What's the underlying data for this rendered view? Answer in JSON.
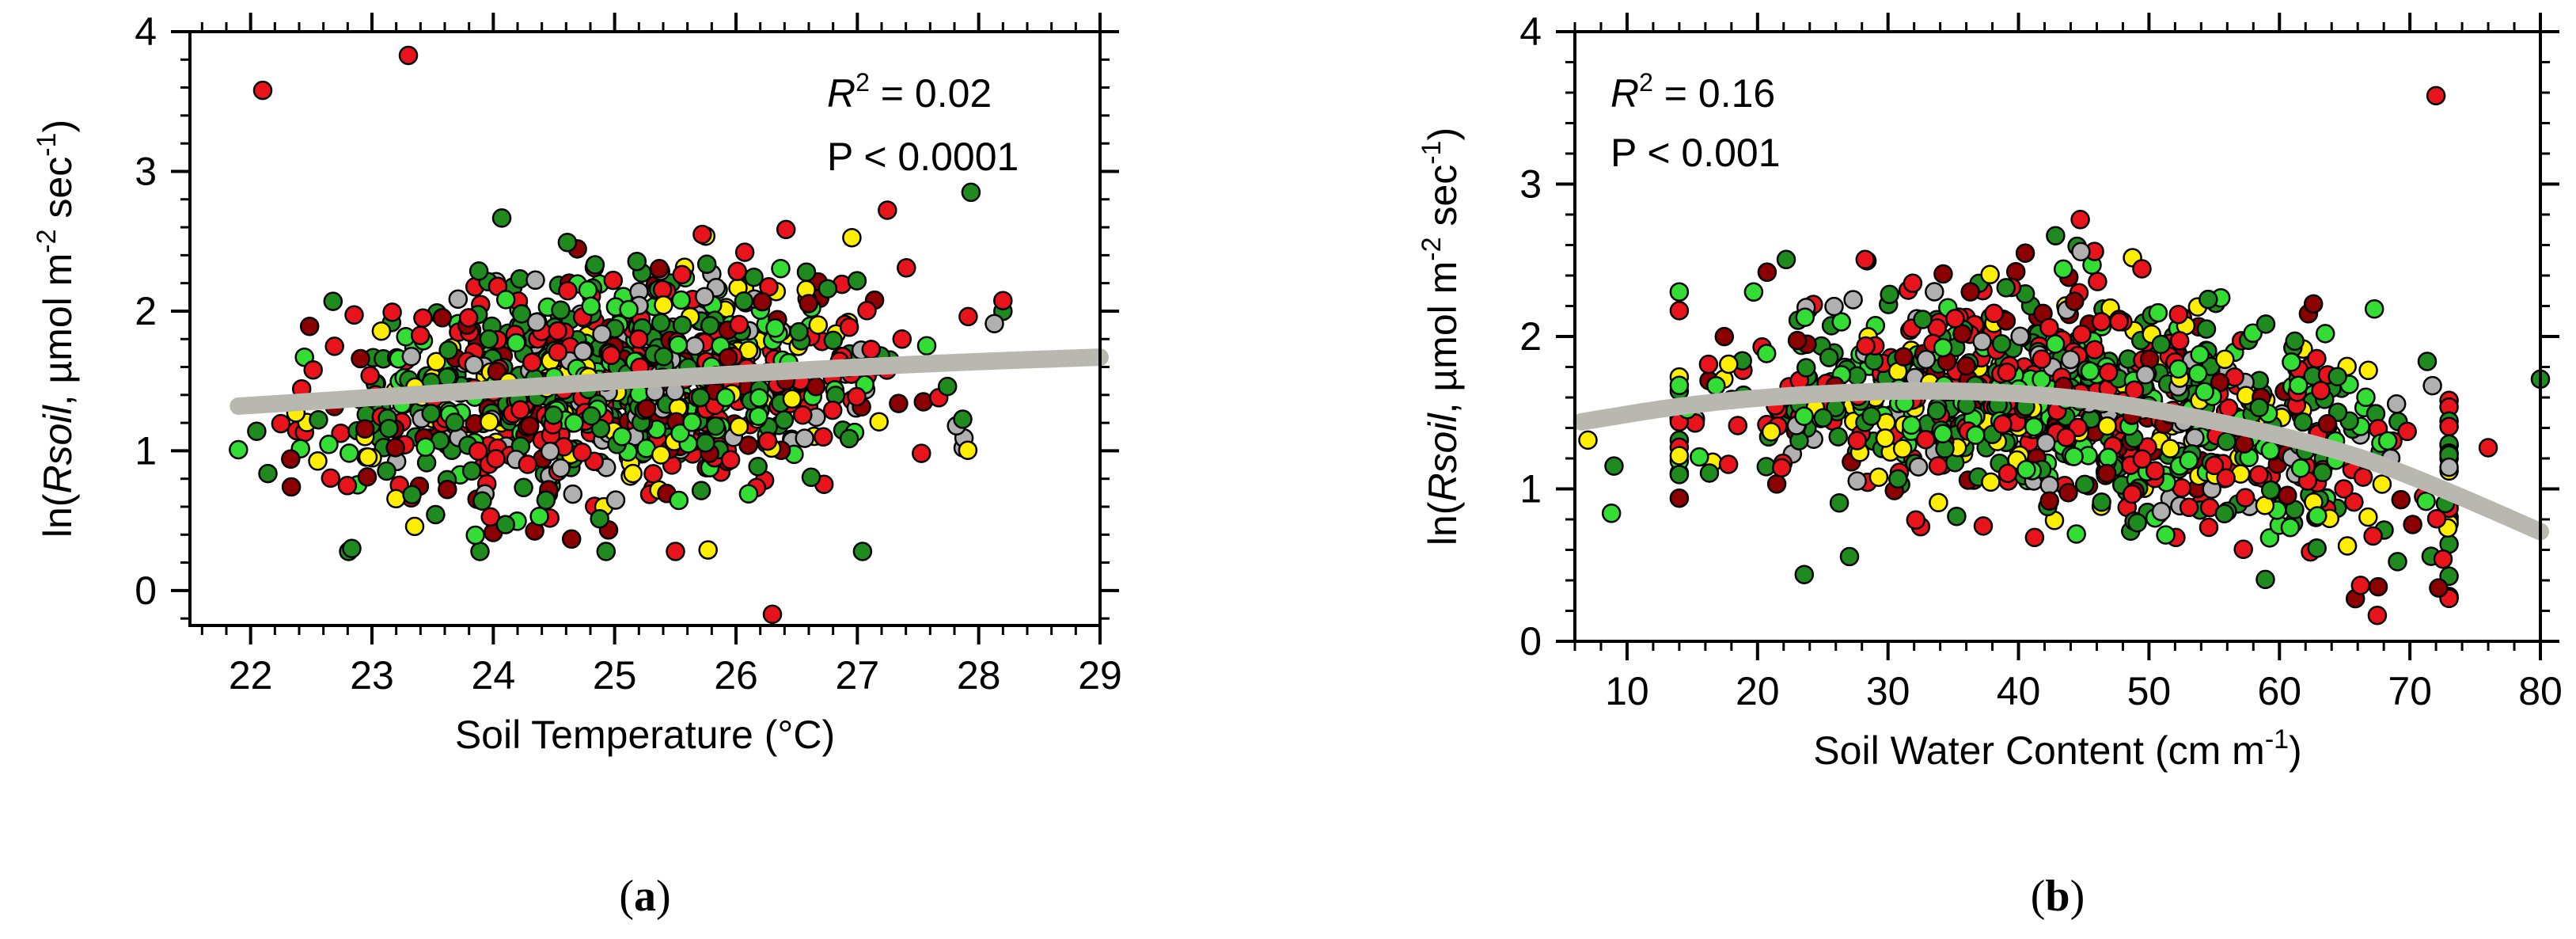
{
  "chart_data": [
    {
      "type": "scatter",
      "panel_label": "(a)",
      "panel_letter": "a",
      "xlabel": "Soil Temperature (°C)",
      "ylabel_parts": {
        "pre": "ln(",
        "italic": "Rsoil",
        "mid": ", µmol m",
        "sup1": "-2",
        "mid2": " sec",
        "sup2": "-1",
        "post": ")"
      },
      "xlim": [
        21.5,
        29
      ],
      "ylim": [
        -0.25,
        4
      ],
      "x_ticks": [
        22,
        23,
        24,
        25,
        26,
        27,
        28,
        29
      ],
      "y_ticks": [
        0,
        1,
        2,
        3,
        4
      ],
      "annotation": {
        "r2_label": "R",
        "r2_sup": "2",
        "r2_value": " = 0.02",
        "p_text": "P < 0.0001"
      },
      "trend": {
        "color": "#b9b8b0",
        "points": [
          [
            21.9,
            1.32
          ],
          [
            23,
            1.38
          ],
          [
            24,
            1.44
          ],
          [
            25,
            1.5
          ],
          [
            26,
            1.55
          ],
          [
            27,
            1.6
          ],
          [
            28,
            1.64
          ],
          [
            29,
            1.67
          ]
        ]
      },
      "outliers": [
        {
          "x": 22.1,
          "y": 3.58,
          "color": "#e8141b"
        },
        {
          "x": 23.3,
          "y": 3.83,
          "color": "#e8141b"
        },
        {
          "x": 26.3,
          "y": -0.17,
          "color": "#e8141b"
        }
      ],
      "cloud": {
        "n": 1000,
        "x_center": 25.0,
        "x_spread": 1.1,
        "x_min": 21.9,
        "x_max": 28.2,
        "y_base": 1.45,
        "y_slope": 0.06,
        "y_spread": 0.4,
        "y_min": 0.28,
        "y_max": 2.85
      }
    },
    {
      "type": "scatter",
      "panel_label": "(b)",
      "panel_letter": "b",
      "xlabel_parts": {
        "pre": "Soil Water Content (cm m",
        "sup": "-1",
        "post": ")"
      },
      "ylabel_parts": {
        "pre": "ln(",
        "italic": "Rsoil",
        "mid": ", µmol m",
        "sup1": "-2",
        "mid2": " sec",
        "sup2": "-1",
        "post": ")"
      },
      "xlim": [
        6,
        80
      ],
      "ylim": [
        0,
        4
      ],
      "x_ticks": [
        10,
        20,
        30,
        40,
        50,
        60,
        70,
        80
      ],
      "y_ticks": [
        0,
        1,
        2,
        3,
        4
      ],
      "annotation": {
        "r2_label": "R",
        "r2_sup": "2",
        "r2_value": " = 0.16",
        "p_text": "P < 0.001"
      },
      "trend": {
        "color": "#b9b8b0",
        "points": [
          [
            6.5,
            1.44
          ],
          [
            15,
            1.56
          ],
          [
            25,
            1.63
          ],
          [
            35,
            1.65
          ],
          [
            45,
            1.6
          ],
          [
            55,
            1.45
          ],
          [
            65,
            1.25
          ],
          [
            72,
            1.02
          ],
          [
            80,
            0.72
          ]
        ]
      },
      "outliers": [
        {
          "x": 72,
          "y": 3.58,
          "color": "#e8141b"
        },
        {
          "x": 67.5,
          "y": 0.17,
          "color": "#e8141b"
        },
        {
          "x": 7,
          "y": 1.32,
          "color": "#ffee00"
        },
        {
          "x": 80,
          "y": 1.72,
          "color": "#1f8b1f"
        },
        {
          "x": 76,
          "y": 1.27,
          "color": "#e8141b"
        },
        {
          "x": 72.2,
          "y": 0.35,
          "color": "#8b0000"
        },
        {
          "x": 8.8,
          "y": 0.84,
          "color": "#33dd33"
        },
        {
          "x": 9,
          "y": 1.15,
          "color": "#1f8b1f"
        }
      ],
      "cloud": {
        "n": 1000,
        "x_center": 45,
        "x_spread": 14,
        "x_min": 14,
        "x_max": 73,
        "y_min": 0.28,
        "y_max": 2.85
      }
    }
  ],
  "series_colors": [
    "#1f8b1f",
    "#33dd33",
    "#e8141b",
    "#8b0000",
    "#ffee00",
    "#b0b0b0"
  ],
  "series_weights": [
    0.3,
    0.15,
    0.24,
    0.11,
    0.11,
    0.09
  ]
}
